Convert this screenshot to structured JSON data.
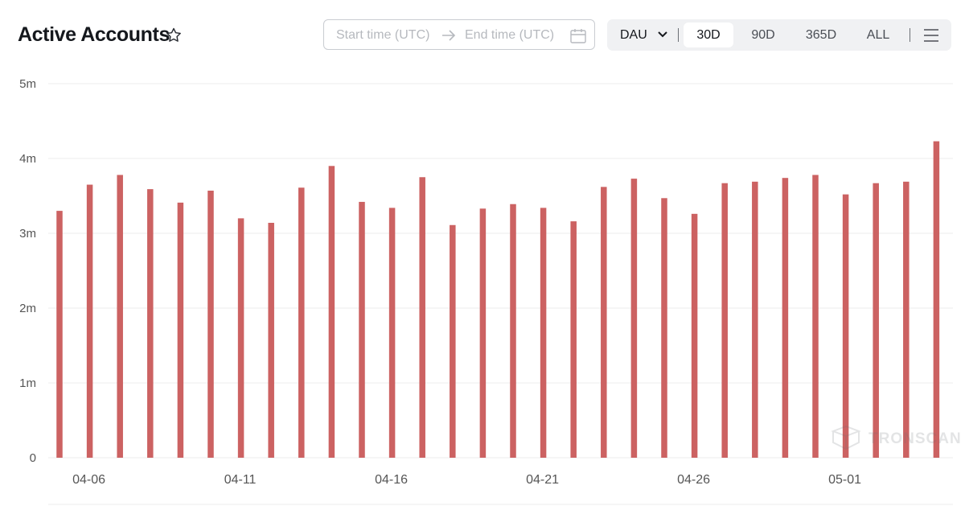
{
  "header": {
    "title": "Active Accounts",
    "start_placeholder": "Start time (UTC)",
    "end_placeholder": "End time (UTC)",
    "metric_select": "DAU",
    "ranges": [
      "30D",
      "90D",
      "365D",
      "ALL"
    ],
    "active_range": "30D"
  },
  "watermark": "TRONSCAN",
  "colors": {
    "bar": "#cc6262",
    "grid": "#eeeeee",
    "axis_text": "#555555"
  },
  "chart_data": {
    "type": "bar",
    "categories": [
      "04-05",
      "04-06",
      "04-07",
      "04-08",
      "04-09",
      "04-10",
      "04-11",
      "04-12",
      "04-13",
      "04-14",
      "04-15",
      "04-16",
      "04-17",
      "04-18",
      "04-19",
      "04-20",
      "04-21",
      "04-22",
      "04-23",
      "04-24",
      "04-25",
      "04-26",
      "04-27",
      "04-28",
      "04-29",
      "04-30",
      "05-01",
      "05-02",
      "05-03",
      "05-04"
    ],
    "values": [
      3.3,
      3.65,
      3.78,
      3.59,
      3.41,
      3.57,
      3.2,
      3.14,
      3.61,
      3.9,
      3.42,
      3.34,
      3.75,
      3.11,
      3.33,
      3.39,
      3.34,
      3.16,
      3.62,
      3.73,
      3.47,
      3.26,
      3.67,
      3.69,
      3.74,
      3.78,
      3.52,
      3.67,
      3.69,
      4.23
    ],
    "value_unit": "m",
    "x_tick_labels": [
      "04-06",
      "04-11",
      "04-16",
      "04-21",
      "04-26",
      "05-01"
    ],
    "y_tick_labels": [
      "0",
      "1m",
      "2m",
      "3m",
      "4m",
      "5m"
    ],
    "ylim": [
      0,
      5
    ],
    "grid": true,
    "legend": "none"
  }
}
